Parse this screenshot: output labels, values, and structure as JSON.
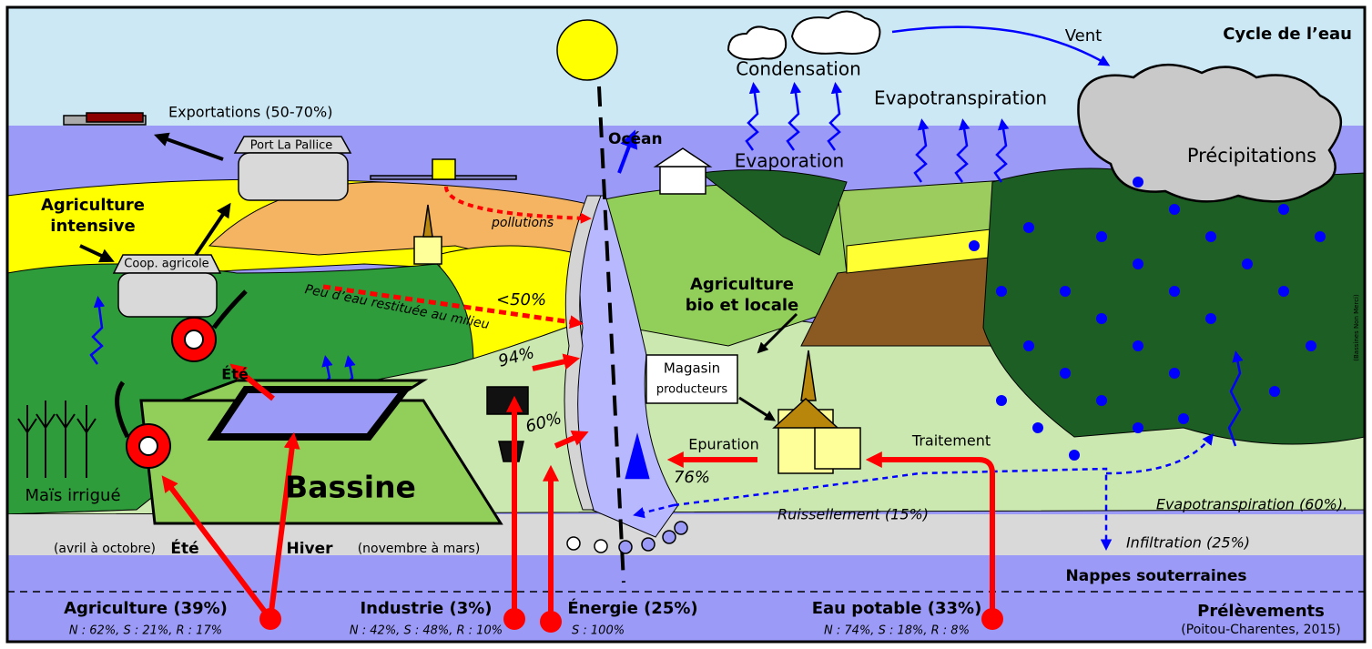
{
  "labels": {
    "title": "Cycle de l’eau",
    "wind": "Vent",
    "condensation": "Condensation",
    "evapotranspiration_top": "Evapotranspiration",
    "evaporation": "Evaporation",
    "precipitation": "Précipitations",
    "exports": "Exportations (50-70%)",
    "port": "Port La Pallice",
    "ocean": "Océan",
    "intensive_agri": [
      "Agriculture",
      "intensive"
    ],
    "coop": "Coop. agricole",
    "pollution": "pollutions",
    "little_water": "Peu d’eau restituée au milieu",
    "under_50": "<50%",
    "organic_agri": [
      "Agriculture",
      "bio et locale"
    ],
    "industry_return": "94%",
    "energy_return": "60%",
    "shop": [
      "Magasin",
      "producteurs"
    ],
    "summer_reel": "Été",
    "reservoir": "Bassine",
    "corn": "Maïs irrigué",
    "purification": "Epuration",
    "purification_return": "76%",
    "treatment": "Traitement",
    "runoff": "Ruissellement (15%)",
    "evapotranspiration_share": "Evapotranspiration (60%).",
    "infiltration": "Infiltration (25%)",
    "summer_period": "(avril à octobre)",
    "summer": "Été",
    "winter": "Hiver",
    "winter_period": "(novembre à mars)",
    "groundwater": "Nappes souterraines",
    "credit": "(Bassines Non Merci)"
  },
  "withdrawals": {
    "title": "Prélèvements",
    "source": "(Poitou-Charentes, 2015)",
    "items": [
      {
        "name": "Agriculture (39%)",
        "detail": "N : 62%, S : 21%, R : 17%"
      },
      {
        "name": "Industrie (3%)",
        "detail": "N : 42%, S : 48%, R : 10%"
      },
      {
        "name": "Énergie (25%)",
        "detail": "S : 100%"
      },
      {
        "name": "Eau potable (33%)",
        "detail": "N : 74%, S : 18%, R : 8%"
      }
    ]
  }
}
